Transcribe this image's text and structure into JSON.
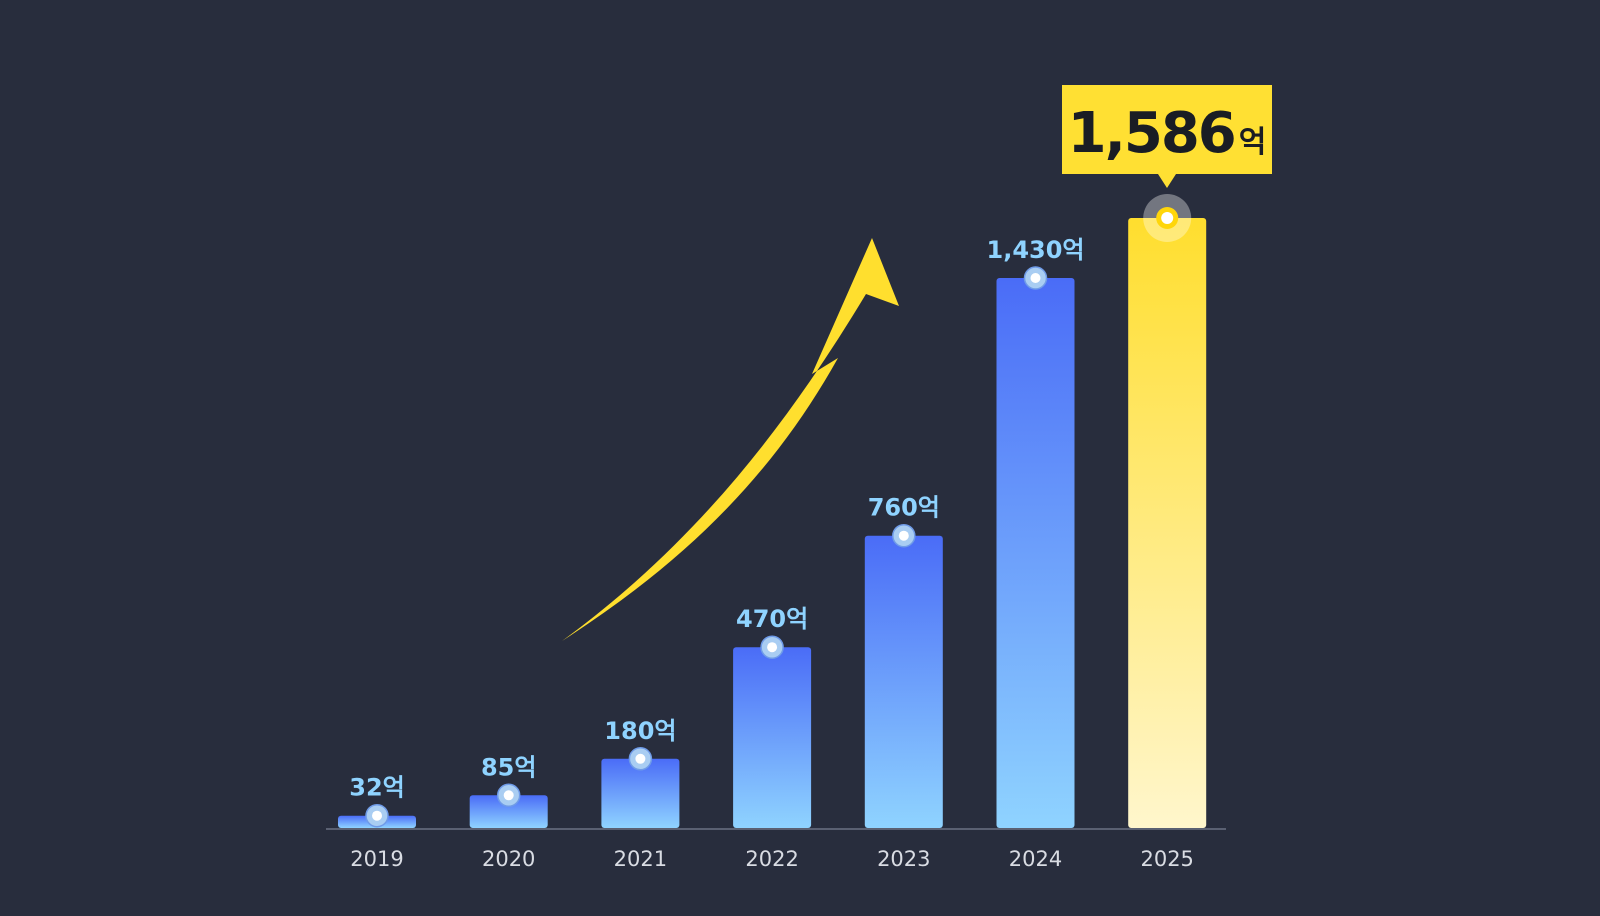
{
  "chart_data": {
    "type": "bar",
    "categories": [
      "2019",
      "2020",
      "2021",
      "2022",
      "2023",
      "2024",
      "2025"
    ],
    "values": [
      32,
      85,
      180,
      470,
      760,
      1430,
      1586
    ],
    "value_labels": [
      "32억",
      "85억",
      "180억",
      "470억",
      "760억",
      "1,430억",
      "1,586억"
    ],
    "highlight": {
      "index": 6,
      "number": "1,586",
      "unit": "억"
    },
    "title": "",
    "xlabel": "",
    "ylabel": "",
    "ylim": [
      0,
      1586
    ],
    "grid": false,
    "legend": "none"
  },
  "colors": {
    "background": "#282d3d",
    "bar_top": "#4a6cf7",
    "bar_bottom": "#8fd3ff",
    "highlight_top": "#ffde2e",
    "highlight_bottom": "#fff6cc",
    "highlight_box": "#ffe033",
    "arrow": "#ffdf2e",
    "value_label": "#8fd3ff",
    "year_label": "#d9dce3",
    "axis": "#5a6072"
  },
  "decorations": {
    "trend_arrow": "up-trend-arrow-icon"
  }
}
